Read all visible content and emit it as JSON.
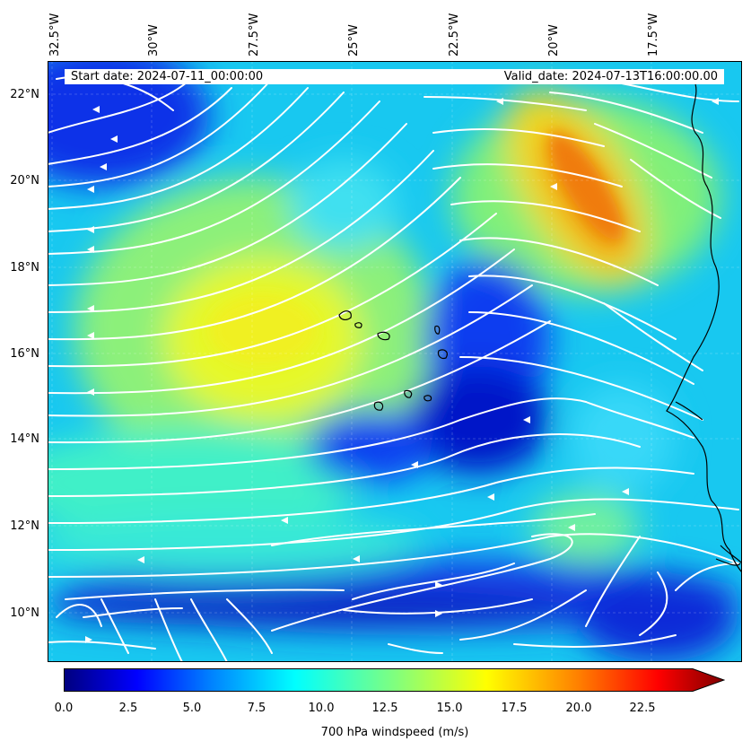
{
  "map": {
    "lon_ticks": [
      "32.5°W",
      "30°W",
      "27.5°W",
      "25°W",
      "22.5°W",
      "20°W",
      "17.5°W"
    ],
    "lat_ticks": [
      "22°N",
      "20°N",
      "18°N",
      "16°N",
      "14°N",
      "12°N",
      "10°N"
    ],
    "field": "700 hPa windspeed",
    "overlay": "white streamlines",
    "colormap": "jet",
    "coastline_color": "#000000",
    "streamline_color": "#ffffff"
  },
  "header": {
    "start_date": "Start date: 2024-07-11_00:00:00",
    "valid_date": "Valid_date: 2024-07-13T16:00:00.00"
  },
  "colorbar": {
    "label": "700 hPa windspeed (m/s)",
    "ticks": [
      "0.0",
      "2.5",
      "5.0",
      "7.5",
      "10.0",
      "12.5",
      "15.0",
      "17.5",
      "20.0",
      "22.5"
    ],
    "range": [
      0,
      25
    ],
    "extend": "max",
    "colors": [
      "#00007f",
      "#0000ff",
      "#007fff",
      "#00ffff",
      "#7fff7f",
      "#ffff00",
      "#ff7f00",
      "#ff0000",
      "#7f0000"
    ]
  }
}
